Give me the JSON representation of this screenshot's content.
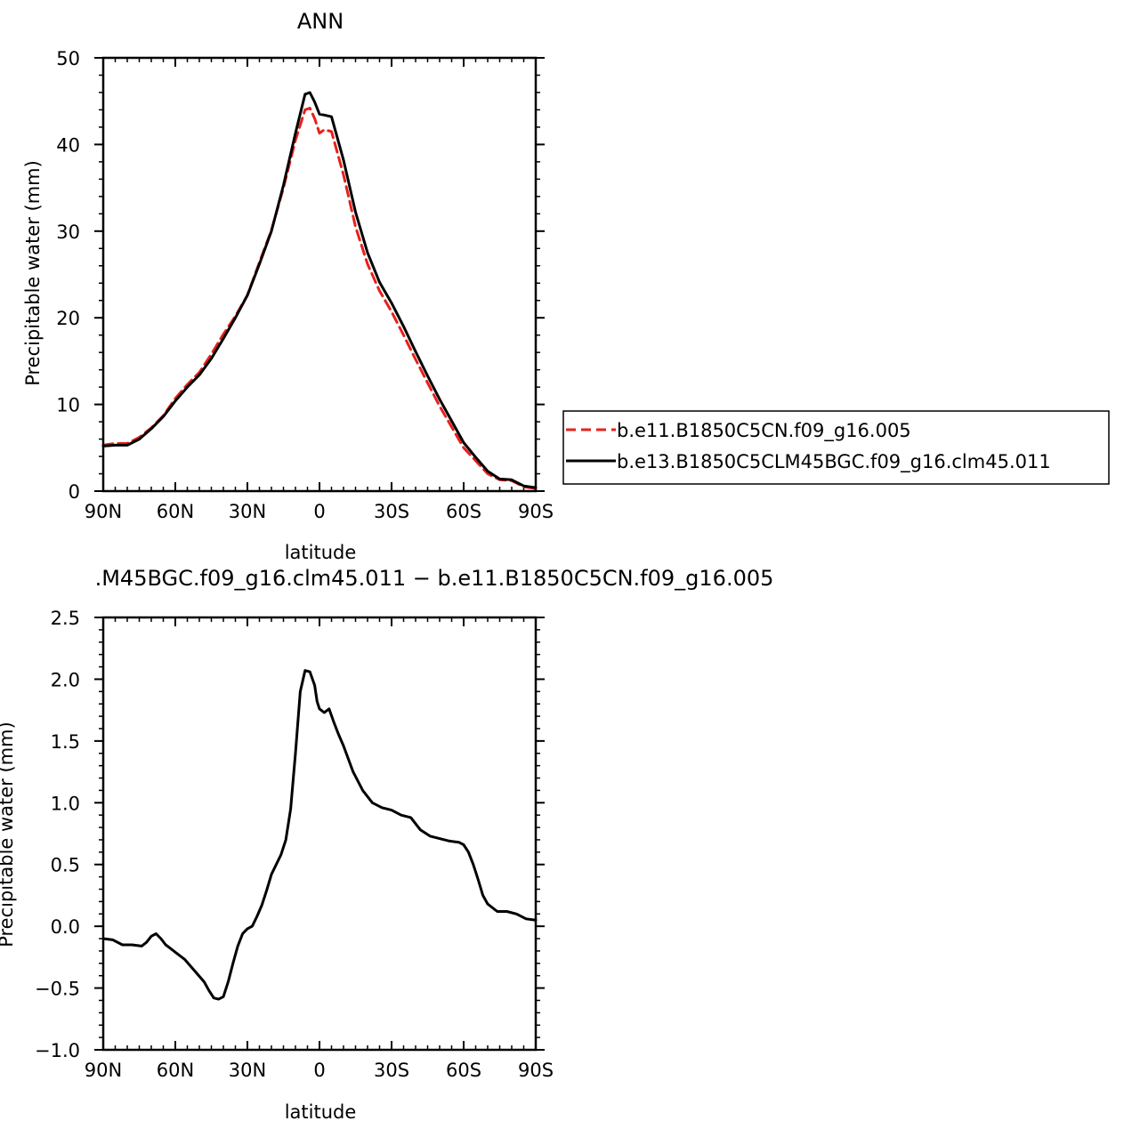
{
  "chart_data": [
    {
      "type": "line",
      "title": "ANN",
      "xlabel": "latitude",
      "ylabel": "Precipitable water (mm)",
      "xlim": [
        90,
        -90
      ],
      "ylim": [
        0,
        50
      ],
      "x_ticks": [
        {
          "value": 90,
          "label": "90N"
        },
        {
          "value": 60,
          "label": "60N"
        },
        {
          "value": 30,
          "label": "30N"
        },
        {
          "value": 0,
          "label": "0"
        },
        {
          "value": -30,
          "label": "30S"
        },
        {
          "value": -60,
          "label": "60S"
        },
        {
          "value": -90,
          "label": "90S"
        }
      ],
      "y_ticks": [
        {
          "value": 0,
          "label": "0"
        },
        {
          "value": 10,
          "label": "10"
        },
        {
          "value": 20,
          "label": "20"
        },
        {
          "value": 30,
          "label": "30"
        },
        {
          "value": 40,
          "label": "40"
        },
        {
          "value": 50,
          "label": "50"
        }
      ],
      "legend_position": "right",
      "series": [
        {
          "name": "b.e11.B1850C5CN.f09_g16.005",
          "color": "#e8201a",
          "dash": "dashed",
          "x": [
            90,
            85,
            80,
            75,
            70,
            65,
            60,
            55,
            50,
            45,
            40,
            35,
            30,
            25,
            20,
            15,
            10,
            6,
            4,
            2,
            0,
            -2,
            -5,
            -10,
            -15,
            -20,
            -25,
            -30,
            -35,
            -40,
            -45,
            -50,
            -55,
            -60,
            -65,
            -70,
            -75,
            -80,
            -85,
            -90
          ],
          "y": [
            5.3,
            5.5,
            5.5,
            6.2,
            7.3,
            8.7,
            10.7,
            12.3,
            13.7,
            15.8,
            18.1,
            20.2,
            22.6,
            26.4,
            30.1,
            35.0,
            40.5,
            44.0,
            44.2,
            43.0,
            41.3,
            41.7,
            41.5,
            36.5,
            30.5,
            26.2,
            23.1,
            20.7,
            18.0,
            15.2,
            12.5,
            9.8,
            7.4,
            5.0,
            3.5,
            2.0,
            1.3,
            1.2,
            0.5,
            0.3
          ]
        },
        {
          "name": "b.e13.B1850C5CLM45BGC.f09_g16.clm45.011",
          "color": "#000000",
          "dash": "solid",
          "x": [
            90,
            85,
            80,
            75,
            70,
            65,
            60,
            55,
            50,
            45,
            40,
            35,
            30,
            25,
            20,
            15,
            10,
            6,
            4,
            2,
            0,
            -2,
            -5,
            -10,
            -15,
            -20,
            -25,
            -30,
            -35,
            -40,
            -45,
            -50,
            -55,
            -60,
            -65,
            -70,
            -75,
            -80,
            -85,
            -90
          ],
          "y": [
            5.2,
            5.3,
            5.3,
            6.0,
            7.2,
            8.6,
            10.4,
            12.0,
            13.4,
            15.3,
            17.6,
            20.0,
            22.6,
            26.2,
            30.0,
            35.3,
            41.3,
            45.8,
            46.0,
            44.9,
            43.5,
            43.4,
            43.2,
            38.2,
            32.2,
            27.5,
            24.1,
            21.7,
            19.0,
            16.1,
            13.3,
            10.6,
            8.1,
            5.6,
            3.9,
            2.3,
            1.4,
            1.3,
            0.6,
            0.4
          ]
        }
      ]
    },
    {
      "type": "line",
      "title": ".M45BGC.f09_g16.clm45.011 − b.e11.B1850C5CN.f09_g16.005",
      "xlabel": "latitude",
      "ylabel": "Precipitable water (mm)",
      "xlim": [
        90,
        -90
      ],
      "ylim": [
        -1.0,
        2.5
      ],
      "x_ticks": [
        {
          "value": 90,
          "label": "90N"
        },
        {
          "value": 60,
          "label": "60N"
        },
        {
          "value": 30,
          "label": "30N"
        },
        {
          "value": 0,
          "label": "0"
        },
        {
          "value": -30,
          "label": "30S"
        },
        {
          "value": -60,
          "label": "60S"
        },
        {
          "value": -90,
          "label": "90S"
        }
      ],
      "y_ticks": [
        {
          "value": -1.0,
          "label": "−1.0"
        },
        {
          "value": -0.5,
          "label": "−0.5"
        },
        {
          "value": 0.0,
          "label": "0.0"
        },
        {
          "value": 0.5,
          "label": "0.5"
        },
        {
          "value": 1.0,
          "label": "1.0"
        },
        {
          "value": 1.5,
          "label": "1.5"
        },
        {
          "value": 2.0,
          "label": "2.0"
        },
        {
          "value": 2.5,
          "label": "2.5"
        }
      ],
      "series": [
        {
          "color": "#000000",
          "dash": "solid",
          "x": [
            90,
            86,
            82,
            78,
            74,
            72,
            70,
            68,
            66,
            64,
            62,
            60,
            56,
            52,
            48,
            46,
            44,
            42,
            40,
            38,
            36,
            34,
            32,
            30,
            28,
            26,
            24,
            22,
            20,
            18,
            16,
            14,
            12,
            10,
            8,
            6,
            4,
            2,
            1,
            0,
            -2,
            -4,
            -6,
            -8,
            -10,
            -14,
            -18,
            -22,
            -26,
            -30,
            -34,
            -38,
            -42,
            -46,
            -50,
            -54,
            -58,
            -60,
            -62,
            -64,
            -66,
            -68,
            -70,
            -74,
            -78,
            -82,
            -86,
            -90
          ],
          "y": [
            -0.1,
            -0.11,
            -0.15,
            -0.15,
            -0.16,
            -0.13,
            -0.08,
            -0.06,
            -0.1,
            -0.15,
            -0.18,
            -0.21,
            -0.27,
            -0.36,
            -0.45,
            -0.52,
            -0.58,
            -0.59,
            -0.57,
            -0.45,
            -0.3,
            -0.16,
            -0.06,
            -0.02,
            0.0,
            0.08,
            0.17,
            0.29,
            0.42,
            0.5,
            0.58,
            0.7,
            0.95,
            1.4,
            1.9,
            2.07,
            2.06,
            1.95,
            1.82,
            1.76,
            1.73,
            1.76,
            1.65,
            1.55,
            1.46,
            1.25,
            1.1,
            1.0,
            0.96,
            0.94,
            0.9,
            0.88,
            0.78,
            0.73,
            0.71,
            0.69,
            0.68,
            0.66,
            0.6,
            0.5,
            0.38,
            0.25,
            0.18,
            0.12,
            0.12,
            0.1,
            0.06,
            0.05
          ]
        }
      ]
    }
  ]
}
